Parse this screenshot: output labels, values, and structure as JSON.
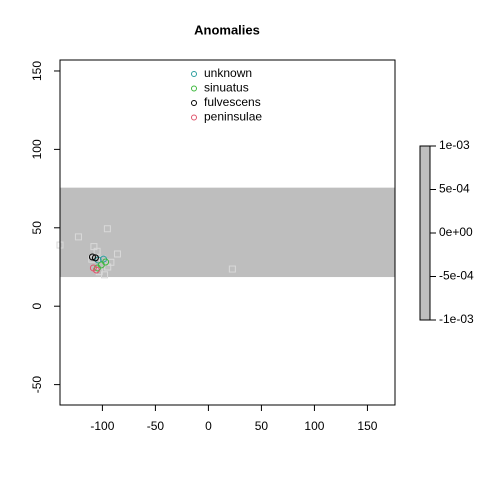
{
  "chart_data": {
    "type": "scatter",
    "title": "Anomalies",
    "xlim": [
      -140,
      176
    ],
    "ylim": [
      -63,
      157
    ],
    "xticks": [
      -100,
      -50,
      0,
      50,
      100,
      150
    ],
    "yticks": [
      -50,
      0,
      50,
      100,
      150
    ],
    "band": {
      "ymin": 18.6,
      "ymax": 75.6,
      "color": "#bebebe"
    },
    "background_points": {
      "color": "#d9d9d9",
      "x": [
        -122.6,
        -95.3,
        -85.8,
        22.6,
        -105,
        -100,
        -95,
        -110,
        -98,
        -103,
        -92,
        -108,
        -140
      ],
      "y": [
        44.2,
        49.4,
        33.3,
        23.7,
        35,
        30,
        25,
        30,
        20,
        22,
        28,
        38,
        39
      ]
    },
    "series": [
      {
        "name": "unknown",
        "color": "#2a9d9d",
        "x": [
          -99,
          -104
        ],
        "y": [
          30,
          29.5
        ]
      },
      {
        "name": "sinuatus",
        "color": "#3cb83c",
        "x": [
          -101,
          -104.7,
          -97
        ],
        "y": [
          26.3,
          24.4,
          28.2
        ]
      },
      {
        "name": "fulvescens",
        "color": "#000000",
        "x": [
          -109.4,
          -106.6
        ],
        "y": [
          31.4,
          30.8
        ]
      },
      {
        "name": "peninsulae",
        "color": "#df536b",
        "x": [
          -108.5,
          -105.7
        ],
        "y": [
          24.4,
          23.1
        ]
      }
    ],
    "colorbar": {
      "color": "#bebebe",
      "lim": [
        -0.001,
        0.001
      ],
      "ticks": [
        {
          "value": 0.001,
          "label": "1e-03"
        },
        {
          "value": 0.0005,
          "label": "5e-04"
        },
        {
          "value": 0,
          "label": "0e+00"
        },
        {
          "value": -0.0005,
          "label": "-5e-04"
        },
        {
          "value": -0.001,
          "label": "-1e-03"
        }
      ]
    }
  }
}
